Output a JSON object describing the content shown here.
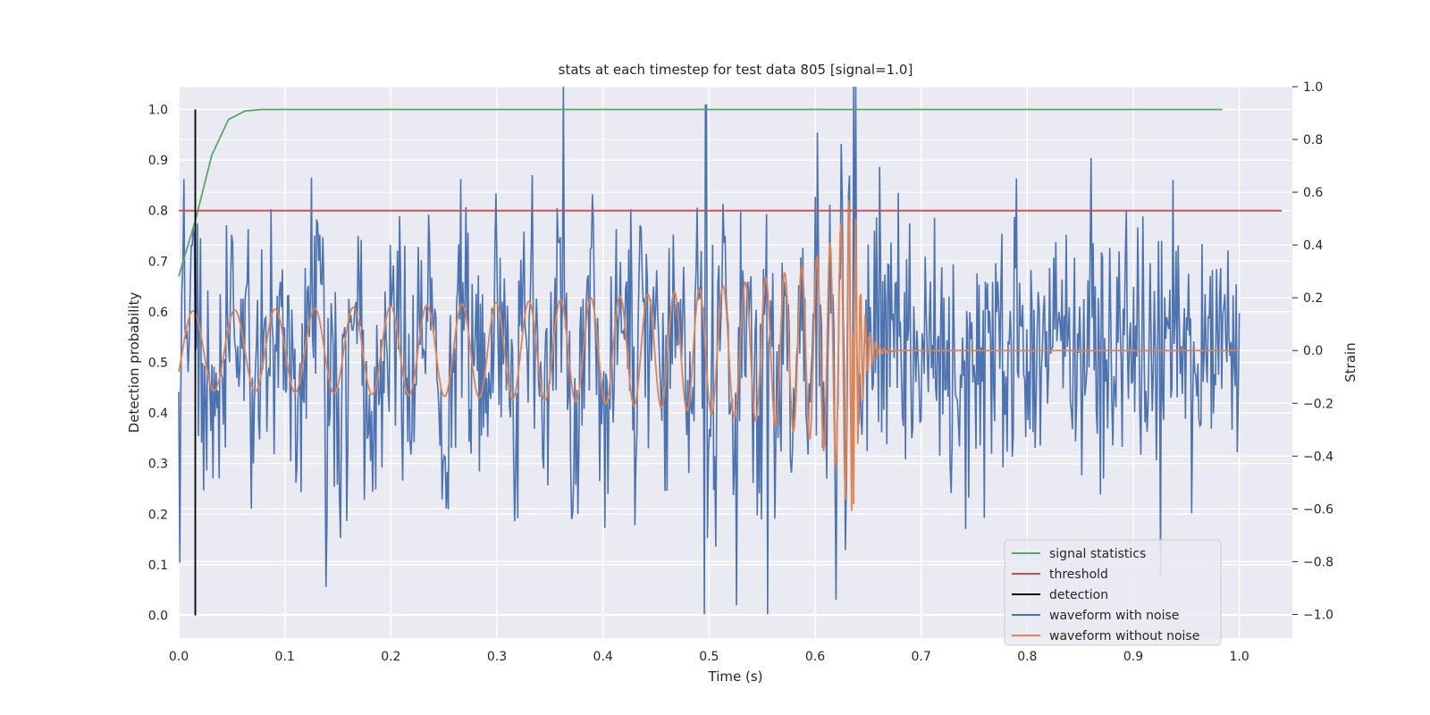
{
  "chart_data": {
    "type": "line",
    "title": "stats at each timestep for test data 805 [signal=1.0]",
    "xlabel": "Time (s)",
    "ylabel": "Detection probability",
    "y2label": "Strain",
    "xlim": [
      0.0,
      1.05
    ],
    "ylim": [
      -0.045,
      1.045
    ],
    "y2lim": [
      -1.09,
      1.0
    ],
    "x_ticks": [
      "0.0",
      "0.1",
      "0.2",
      "0.3",
      "0.4",
      "0.5",
      "0.6",
      "0.7",
      "0.8",
      "0.9",
      "1.0"
    ],
    "y_ticks": [
      "0.0",
      "0.1",
      "0.2",
      "0.3",
      "0.4",
      "0.5",
      "0.6",
      "0.7",
      "0.8",
      "0.9",
      "1.0"
    ],
    "y2_ticks": [
      "-1.0",
      "-0.8",
      "-0.6",
      "-0.4",
      "-0.2",
      "0.0",
      "0.2",
      "0.4",
      "0.6",
      "0.8",
      "1.0"
    ],
    "grid": true,
    "legend_position": "lower-right",
    "colors": {
      "background": "#eaeaf2",
      "grid": "#ffffff",
      "signal_statistics": "#55a868",
      "threshold": "#c44e52",
      "detection": "#000000",
      "waveform_with_noise": "#4c72b0",
      "waveform_without_noise": "#dd8452"
    },
    "series": [
      {
        "name": "signal statistics",
        "axis": "left",
        "x": [
          0.0,
          0.0156,
          0.0312,
          0.0469,
          0.0625,
          0.0781,
          0.1,
          0.2,
          0.4,
          0.6,
          0.8,
          0.984
        ],
        "y": [
          0.67,
          0.78,
          0.91,
          0.98,
          0.997,
          1.0,
          1.0,
          1.0,
          1.0,
          1.0,
          1.0,
          1.0
        ]
      },
      {
        "name": "threshold",
        "axis": "left",
        "x": [
          0.0,
          1.04
        ],
        "y": [
          0.8,
          0.8
        ]
      },
      {
        "name": "detection",
        "axis": "left",
        "x": [
          0.0156,
          0.0156
        ],
        "y": [
          0.0,
          1.0
        ]
      },
      {
        "name": "waveform with noise",
        "axis": "right",
        "note": "noise: approx. gaussian, sd 0.25 strain; peaks +0.93 at t=0.497, +1.0 at t=0.636, -1.0 at t=0.555",
        "t_range": [
          0.0,
          1.0
        ],
        "noise_sd": 0.25
      },
      {
        "name": "waveform without noise",
        "axis": "right",
        "note": "chirp from ~25 Hz at amplitude 0.15 rising to ~0.7 near merger at t=0.636, then ringdown to 0",
        "merger_time": 0.636,
        "start_amplitude": 0.15,
        "peak_amplitude": 0.7
      }
    ]
  }
}
